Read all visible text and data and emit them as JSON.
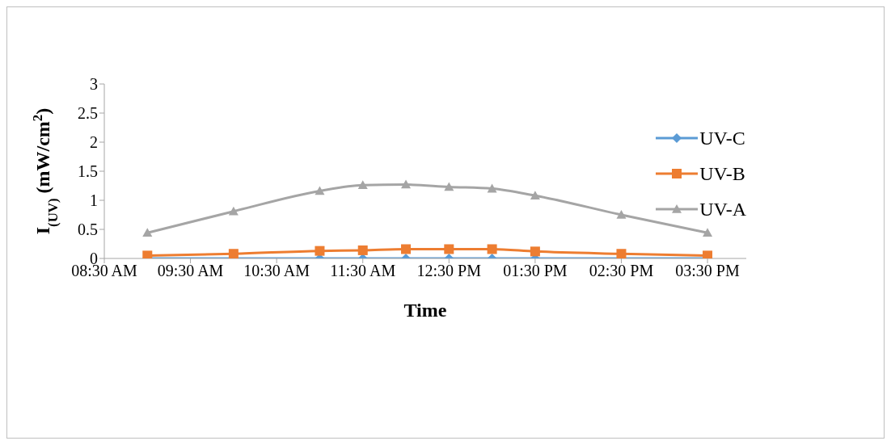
{
  "chart_data": {
    "type": "line",
    "xlabel": "Time",
    "ylabel": "I$_{(UV)}$ (mW/cm$^{2}$)",
    "x": [
      9,
      10,
      11,
      11.5,
      12,
      12.5,
      13,
      13.5,
      14.5,
      15.5
    ],
    "xlim": [
      8.5,
      15.95
    ],
    "xticks": [
      {
        "value": 8.5,
        "label": "08:30 AM"
      },
      {
        "value": 9.5,
        "label": "09:30 AM"
      },
      {
        "value": 10.5,
        "label": "10:30 AM"
      },
      {
        "value": 11.5,
        "label": "11:30 AM"
      },
      {
        "value": 12.5,
        "label": "12:30 PM"
      },
      {
        "value": 13.5,
        "label": "01:30 PM"
      },
      {
        "value": 14.5,
        "label": "02:30 PM"
      },
      {
        "value": 15.5,
        "label": "03:30 PM"
      }
    ],
    "ylim": [
      0,
      3
    ],
    "yticks": [
      0,
      0.5,
      1,
      1.5,
      2,
      2.5,
      3
    ],
    "series": [
      {
        "name": "UV-C",
        "color": "#5b9bd5",
        "marker": "diamond",
        "values": [
          0,
          0,
          0,
          0,
          0,
          0,
          0,
          0,
          0,
          0
        ]
      },
      {
        "name": "UV-B",
        "color": "#ed7d31",
        "marker": "square",
        "values": [
          0.05,
          0.08,
          0.13,
          0.14,
          0.16,
          0.16,
          0.16,
          0.12,
          0.08,
          0.05
        ]
      },
      {
        "name": "UV-A",
        "color": "#a5a5a5",
        "marker": "triangle",
        "values": [
          0.44,
          0.81,
          1.16,
          1.26,
          1.27,
          1.23,
          1.2,
          1.08,
          0.75,
          0.44
        ]
      }
    ],
    "legend": "right",
    "grid": false
  }
}
